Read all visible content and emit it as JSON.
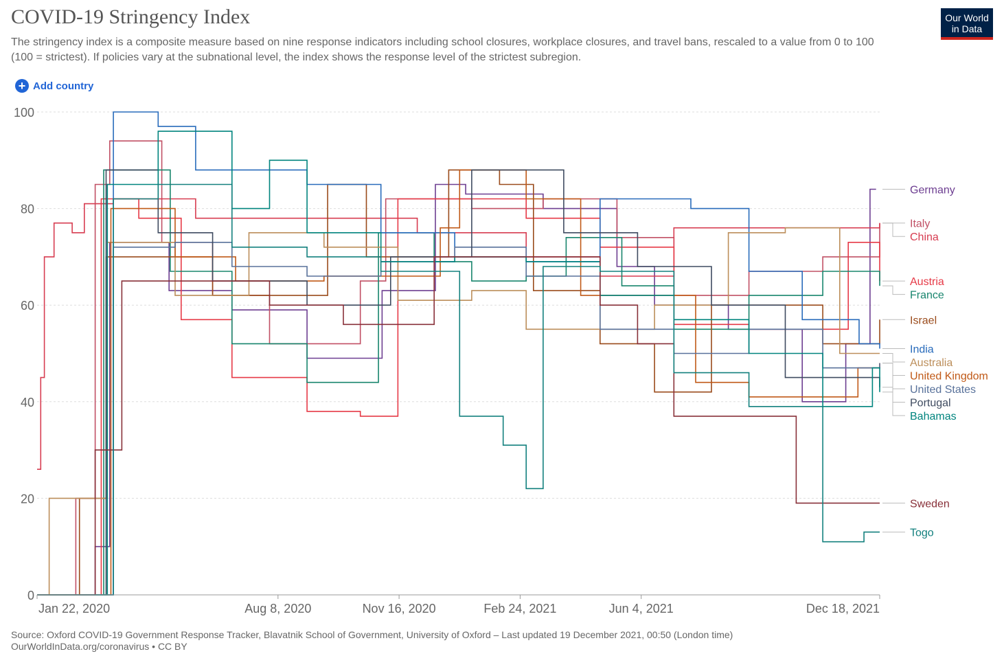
{
  "title": "COVID-19 Stringency Index",
  "subtitle": "The stringency index is a composite measure based on nine response indicators including school closures, workplace closures, and travel bans, rescaled to a value from 0 to 100 (100 = strictest). If policies vary at the subnational level, the index shows the response level of the strictest subregion.",
  "logo": {
    "line1": "Our World",
    "line2": "in Data"
  },
  "add_country": {
    "icon": "plus-circle-icon",
    "label": "Add country"
  },
  "footer": {
    "source": "Source: Oxford COVID-19 Government Response Tracker, Blavatnik School of Government, University of Oxford – Last updated 19 December 2021, 00:50 (London time)",
    "link": "OurWorldInData.org/coronavirus • CC BY"
  },
  "chart_data": {
    "type": "line",
    "title": "COVID-19 Stringency Index",
    "x_ticks": [
      "Jan 22, 2020",
      "Aug 8, 2020",
      "Nov 16, 2020",
      "Feb 24, 2021",
      "Jun 4, 2021",
      "Dec 18, 2021"
    ],
    "y_ticks": [
      0,
      20,
      40,
      60,
      80,
      100
    ],
    "ylim": [
      0,
      100
    ],
    "xlim": [
      "2020-01-22",
      "2021-12-18"
    ],
    "grid": "horizontal-dashed",
    "legend": "right-end-labels",
    "series": [
      {
        "name": "Germany",
        "color": "#6d3e91",
        "points": [
          [
            "2020-01-22",
            0
          ],
          [
            "2020-03-10",
            10
          ],
          [
            "2020-03-22",
            73
          ],
          [
            "2020-05-10",
            63
          ],
          [
            "2020-07-01",
            59
          ],
          [
            "2020-09-01",
            49
          ],
          [
            "2020-11-02",
            63
          ],
          [
            "2020-12-16",
            85
          ],
          [
            "2021-01-10",
            83
          ],
          [
            "2021-03-15",
            80
          ],
          [
            "2021-05-15",
            68
          ],
          [
            "2021-06-15",
            60
          ],
          [
            "2021-08-15",
            55
          ],
          [
            "2021-10-15",
            40
          ],
          [
            "2021-11-20",
            52
          ],
          [
            "2021-12-10",
            84
          ],
          [
            "2021-12-15",
            84
          ]
        ]
      },
      {
        "name": "Italy",
        "color": "#c15065",
        "points": [
          [
            "2020-01-22",
            0
          ],
          [
            "2020-02-23",
            20
          ],
          [
            "2020-03-10",
            85
          ],
          [
            "2020-03-22",
            94
          ],
          [
            "2020-05-04",
            73
          ],
          [
            "2020-06-15",
            62
          ],
          [
            "2020-08-01",
            52
          ],
          [
            "2020-10-15",
            65
          ],
          [
            "2020-11-05",
            82
          ],
          [
            "2021-01-15",
            80
          ],
          [
            "2021-03-15",
            82
          ],
          [
            "2021-05-15",
            74
          ],
          [
            "2021-07-01",
            62
          ],
          [
            "2021-09-01",
            67
          ],
          [
            "2021-11-01",
            70
          ],
          [
            "2021-12-18",
            77
          ]
        ]
      },
      {
        "name": "China",
        "color": "#d73c50",
        "points": [
          [
            "2020-01-22",
            26
          ],
          [
            "2020-01-25",
            45
          ],
          [
            "2020-01-28",
            70
          ],
          [
            "2020-02-05",
            77
          ],
          [
            "2020-02-20",
            75
          ],
          [
            "2020-03-01",
            81
          ],
          [
            "2020-03-25",
            82
          ],
          [
            "2020-06-01",
            78
          ],
          [
            "2020-09-01",
            78
          ],
          [
            "2020-12-01",
            75
          ],
          [
            "2021-03-01",
            70
          ],
          [
            "2021-05-01",
            66
          ],
          [
            "2021-07-01",
            76
          ],
          [
            "2021-10-01",
            76
          ],
          [
            "2021-12-18",
            77
          ]
        ]
      },
      {
        "name": "Austria",
        "color": "#e63946",
        "points": [
          [
            "2020-01-22",
            0
          ],
          [
            "2020-03-15",
            82
          ],
          [
            "2020-04-15",
            78
          ],
          [
            "2020-05-20",
            57
          ],
          [
            "2020-07-01",
            45
          ],
          [
            "2020-09-01",
            38
          ],
          [
            "2020-10-15",
            37
          ],
          [
            "2020-11-15",
            82
          ],
          [
            "2021-01-01",
            82
          ],
          [
            "2021-03-01",
            78
          ],
          [
            "2021-05-01",
            72
          ],
          [
            "2021-07-01",
            56
          ],
          [
            "2021-09-01",
            55
          ],
          [
            "2021-11-22",
            73
          ],
          [
            "2021-12-18",
            65
          ]
        ]
      },
      {
        "name": "France",
        "color": "#18856d",
        "points": [
          [
            "2020-01-22",
            0
          ],
          [
            "2020-03-17",
            88
          ],
          [
            "2020-05-11",
            67
          ],
          [
            "2020-07-01",
            52
          ],
          [
            "2020-09-01",
            44
          ],
          [
            "2020-10-30",
            75
          ],
          [
            "2020-12-15",
            69
          ],
          [
            "2021-01-15",
            65
          ],
          [
            "2021-03-01",
            66
          ],
          [
            "2021-04-03",
            74
          ],
          [
            "2021-05-19",
            64
          ],
          [
            "2021-07-01",
            55
          ],
          [
            "2021-09-01",
            62
          ],
          [
            "2021-11-01",
            67
          ],
          [
            "2021-12-18",
            64
          ]
        ]
      },
      {
        "name": "Israel",
        "color": "#9a4b1b",
        "points": [
          [
            "2020-01-22",
            0
          ],
          [
            "2020-02-26",
            20
          ],
          [
            "2020-03-19",
            70
          ],
          [
            "2020-05-04",
            70
          ],
          [
            "2020-06-15",
            62
          ],
          [
            "2020-09-18",
            85
          ],
          [
            "2020-10-20",
            70
          ],
          [
            "2020-12-27",
            88
          ],
          [
            "2021-02-07",
            85
          ],
          [
            "2021-03-07",
            63
          ],
          [
            "2021-05-01",
            52
          ],
          [
            "2021-06-15",
            42
          ],
          [
            "2021-08-01",
            60
          ],
          [
            "2021-10-01",
            60
          ],
          [
            "2021-11-01",
            52
          ],
          [
            "2021-12-18",
            57
          ]
        ]
      },
      {
        "name": "India",
        "color": "#286bbb",
        "points": [
          [
            "2020-01-22",
            0
          ],
          [
            "2020-03-25",
            100
          ],
          [
            "2020-05-01",
            97
          ],
          [
            "2020-06-01",
            88
          ],
          [
            "2020-09-01",
            85
          ],
          [
            "2020-11-01",
            75
          ],
          [
            "2021-01-01",
            70
          ],
          [
            "2021-03-01",
            69
          ],
          [
            "2021-05-01",
            82
          ],
          [
            "2021-07-15",
            80
          ],
          [
            "2021-09-01",
            67
          ],
          [
            "2021-10-15",
            57
          ],
          [
            "2021-12-01",
            52
          ],
          [
            "2021-12-18",
            51
          ]
        ]
      },
      {
        "name": "Australia",
        "color": "#bc8e5a",
        "points": [
          [
            "2020-01-22",
            0
          ],
          [
            "2020-02-01",
            20
          ],
          [
            "2020-03-20",
            73
          ],
          [
            "2020-05-15",
            62
          ],
          [
            "2020-07-15",
            75
          ],
          [
            "2020-09-15",
            72
          ],
          [
            "2020-11-15",
            61
          ],
          [
            "2021-01-15",
            63
          ],
          [
            "2021-03-01",
            55
          ],
          [
            "2021-06-15",
            60
          ],
          [
            "2021-08-15",
            75
          ],
          [
            "2021-10-01",
            76
          ],
          [
            "2021-11-15",
            50
          ],
          [
            "2021-12-18",
            50
          ]
        ]
      },
      {
        "name": "United Kingdom",
        "color": "#c05917",
        "points": [
          [
            "2020-01-22",
            0
          ],
          [
            "2020-03-23",
            80
          ],
          [
            "2020-05-15",
            70
          ],
          [
            "2020-07-04",
            65
          ],
          [
            "2020-09-15",
            66
          ],
          [
            "2020-11-05",
            66
          ],
          [
            "2020-12-20",
            76
          ],
          [
            "2021-01-05",
            88
          ],
          [
            "2021-03-01",
            82
          ],
          [
            "2021-04-15",
            62
          ],
          [
            "2021-07-19",
            44
          ],
          [
            "2021-09-01",
            41
          ],
          [
            "2021-11-30",
            47
          ],
          [
            "2021-12-18",
            48
          ]
        ]
      },
      {
        "name": "United States",
        "color": "#58719a",
        "points": [
          [
            "2020-01-22",
            0
          ],
          [
            "2020-03-25",
            72
          ],
          [
            "2020-05-15",
            73
          ],
          [
            "2020-07-01",
            68
          ],
          [
            "2020-09-01",
            66
          ],
          [
            "2020-11-01",
            69
          ],
          [
            "2021-01-01",
            72
          ],
          [
            "2021-03-01",
            66
          ],
          [
            "2021-05-01",
            55
          ],
          [
            "2021-07-01",
            50
          ],
          [
            "2021-09-01",
            55
          ],
          [
            "2021-11-01",
            47
          ],
          [
            "2021-12-18",
            48
          ]
        ]
      },
      {
        "name": "Portugal",
        "color": "#3f4b60",
        "points": [
          [
            "2020-01-22",
            0
          ],
          [
            "2020-03-19",
            88
          ],
          [
            "2020-05-01",
            75
          ],
          [
            "2020-06-15",
            65
          ],
          [
            "2020-09-01",
            60
          ],
          [
            "2020-11-09",
            70
          ],
          [
            "2021-01-15",
            88
          ],
          [
            "2021-02-15",
            88
          ],
          [
            "2021-04-01",
            75
          ],
          [
            "2021-06-01",
            68
          ],
          [
            "2021-08-01",
            60
          ],
          [
            "2021-10-01",
            45
          ],
          [
            "2021-12-18",
            43
          ]
        ]
      },
      {
        "name": "Bahamas",
        "color": "#00847e",
        "points": [
          [
            "2020-01-22",
            0
          ],
          [
            "2020-03-20",
            85
          ],
          [
            "2020-05-01",
            96
          ],
          [
            "2020-07-01",
            80
          ],
          [
            "2020-08-01",
            90
          ],
          [
            "2020-09-01",
            75
          ],
          [
            "2020-11-01",
            69
          ],
          [
            "2021-01-01",
            70
          ],
          [
            "2021-03-01",
            69
          ],
          [
            "2021-05-01",
            62
          ],
          [
            "2021-07-01",
            57
          ],
          [
            "2021-09-01",
            50
          ],
          [
            "2021-11-01",
            39
          ],
          [
            "2021-12-12",
            47
          ],
          [
            "2021-12-18",
            42
          ]
        ]
      },
      {
        "name": "Sweden",
        "color": "#883039",
        "points": [
          [
            "2020-01-22",
            0
          ],
          [
            "2020-03-10",
            30
          ],
          [
            "2020-04-01",
            65
          ],
          [
            "2020-06-01",
            65
          ],
          [
            "2020-08-01",
            60
          ],
          [
            "2020-10-01",
            56
          ],
          [
            "2020-12-15",
            70
          ],
          [
            "2021-02-15",
            70
          ],
          [
            "2021-05-01",
            60
          ],
          [
            "2021-06-01",
            52
          ],
          [
            "2021-07-01",
            37
          ],
          [
            "2021-10-01",
            37
          ],
          [
            "2021-10-10",
            19
          ],
          [
            "2021-12-18",
            19
          ]
        ]
      },
      {
        "name": "Togo",
        "color": "#13807e",
        "points": [
          [
            "2020-01-22",
            0
          ],
          [
            "2020-03-20",
            0
          ],
          [
            "2020-03-25",
            82
          ],
          [
            "2020-05-01",
            85
          ],
          [
            "2020-07-01",
            72
          ],
          [
            "2020-09-01",
            70
          ],
          [
            "2020-11-01",
            67
          ],
          [
            "2021-01-05",
            37
          ],
          [
            "2021-02-10",
            31
          ],
          [
            "2021-03-01",
            22
          ],
          [
            "2021-03-15",
            68
          ],
          [
            "2021-05-01",
            67
          ],
          [
            "2021-07-01",
            46
          ],
          [
            "2021-09-01",
            39
          ],
          [
            "2021-10-25",
            39
          ],
          [
            "2021-11-01",
            11
          ],
          [
            "2021-12-05",
            13
          ],
          [
            "2021-12-18",
            13
          ]
        ]
      }
    ]
  }
}
